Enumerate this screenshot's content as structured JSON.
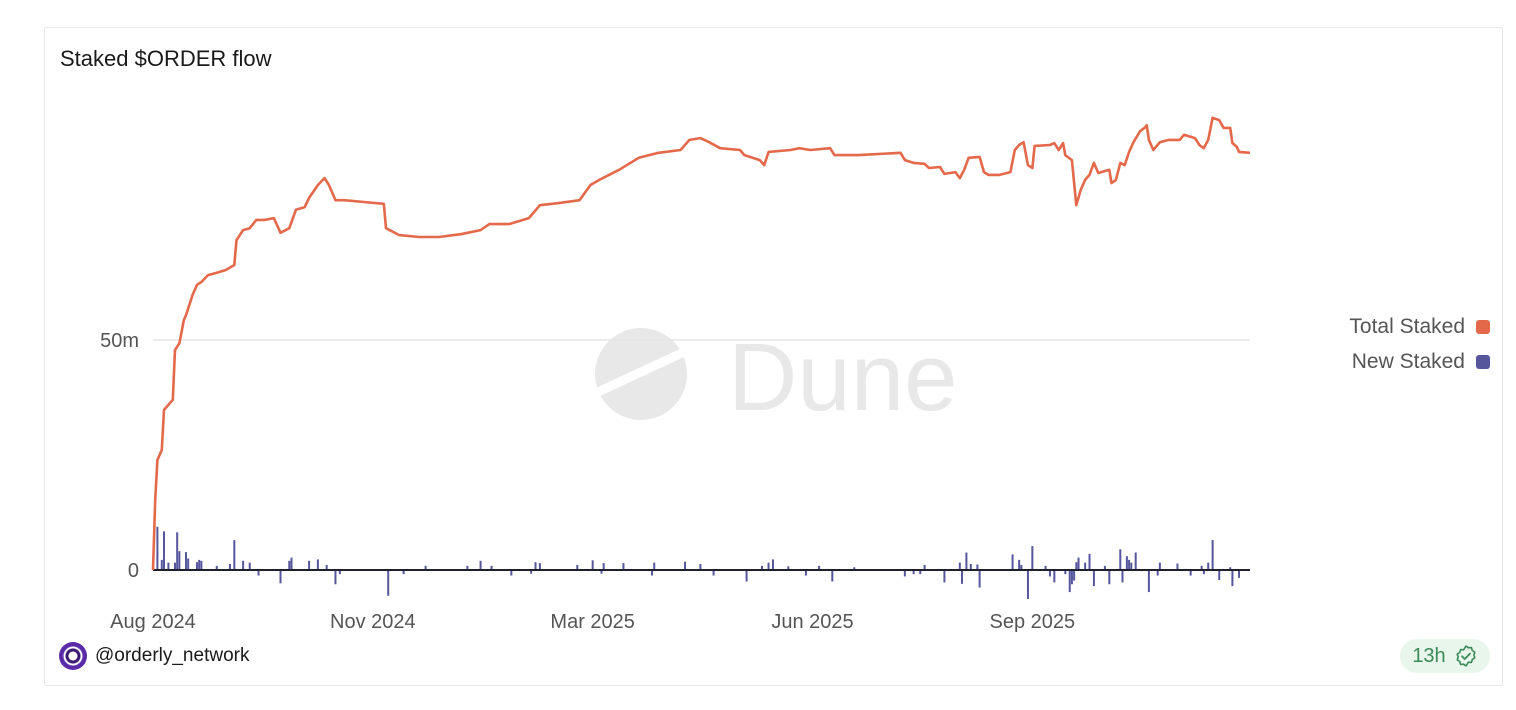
{
  "title": "Staked $ORDER flow",
  "watermark": "Dune",
  "footer": {
    "username": "@orderly_network",
    "freshness": "13h",
    "verified_icon": "badge-check-icon"
  },
  "colors": {
    "total": "#e4694a",
    "new": "#55569c",
    "grid": "#e6e6e6",
    "axis": "#1f1f2e"
  },
  "chart_data": {
    "type": "line+bar",
    "title": "Staked $ORDER flow",
    "x_unit": "days since 2024-08-20",
    "xlim": [
      0,
      499
    ],
    "ylim": [
      -6,
      102
    ],
    "y_unit": "millions",
    "grid": true,
    "legend_position": "right",
    "x_ticks": [
      {
        "x": 0,
        "label": "Aug 2024"
      },
      {
        "x": 100,
        "label": "Nov 2024"
      },
      {
        "x": 200,
        "label": "Mar 2025"
      },
      {
        "x": 300,
        "label": "Jun 2025"
      },
      {
        "x": 400,
        "label": "Sep 2025"
      }
    ],
    "y_ticks": [
      {
        "y": 0,
        "label": "0"
      },
      {
        "y": 50,
        "label": "50m"
      }
    ],
    "series": [
      {
        "name": "Total Staked",
        "type": "line",
        "points": [
          [
            0,
            0
          ],
          [
            1,
            15.2
          ],
          [
            2,
            23.9
          ],
          [
            4,
            26.1
          ],
          [
            5,
            34.8
          ],
          [
            9,
            37.0
          ],
          [
            10,
            47.8
          ],
          [
            12,
            49.3
          ],
          [
            14,
            54.3
          ],
          [
            15,
            55.4
          ],
          [
            18,
            59.8
          ],
          [
            20,
            62.0
          ],
          [
            22,
            62.6
          ],
          [
            25,
            64.1
          ],
          [
            29,
            64.6
          ],
          [
            33,
            65.2
          ],
          [
            37,
            66.3
          ],
          [
            38,
            71.7
          ],
          [
            41,
            73.9
          ],
          [
            44,
            74.3
          ],
          [
            47,
            76.1
          ],
          [
            51,
            76.1
          ],
          [
            55,
            76.5
          ],
          [
            58,
            73.3
          ],
          [
            62,
            74.3
          ],
          [
            65,
            78.3
          ],
          [
            69,
            78.9
          ],
          [
            71,
            80.9
          ],
          [
            75,
            83.7
          ],
          [
            78,
            85.2
          ],
          [
            80,
            83.7
          ],
          [
            83,
            80.4
          ],
          [
            87,
            80.4
          ],
          [
            96,
            80.0
          ],
          [
            105,
            79.6
          ],
          [
            106,
            74.3
          ],
          [
            112,
            72.8
          ],
          [
            121,
            72.4
          ],
          [
            130,
            72.4
          ],
          [
            140,
            73.0
          ],
          [
            149,
            73.9
          ],
          [
            153,
            75.2
          ],
          [
            162,
            75.2
          ],
          [
            171,
            76.5
          ],
          [
            176,
            79.3
          ],
          [
            185,
            79.8
          ],
          [
            194,
            80.4
          ],
          [
            199,
            83.7
          ],
          [
            203,
            84.8
          ],
          [
            212,
            87.0
          ],
          [
            221,
            89.6
          ],
          [
            230,
            90.7
          ],
          [
            240,
            91.3
          ],
          [
            244,
            93.5
          ],
          [
            249,
            93.9
          ],
          [
            253,
            93.0
          ],
          [
            258,
            91.7
          ],
          [
            267,
            91.3
          ],
          [
            269,
            90.2
          ],
          [
            276,
            89.1
          ],
          [
            278,
            88.0
          ],
          [
            280,
            90.9
          ],
          [
            290,
            91.3
          ],
          [
            294,
            91.7
          ],
          [
            299,
            91.3
          ],
          [
            308,
            91.7
          ],
          [
            310,
            90.2
          ],
          [
            321,
            90.2
          ],
          [
            340,
            90.7
          ],
          [
            342,
            89.1
          ],
          [
            346,
            88.5
          ],
          [
            351,
            88.3
          ],
          [
            353,
            87.4
          ],
          [
            358,
            87.6
          ],
          [
            360,
            86.1
          ],
          [
            365,
            86.5
          ],
          [
            367,
            85.2
          ],
          [
            369,
            87.0
          ],
          [
            371,
            89.6
          ],
          [
            376,
            89.8
          ],
          [
            378,
            86.5
          ],
          [
            380,
            85.9
          ],
          [
            385,
            85.9
          ],
          [
            390,
            86.5
          ],
          [
            392,
            91.3
          ],
          [
            394,
            92.4
          ],
          [
            396,
            93.0
          ],
          [
            398,
            88.0
          ],
          [
            400,
            87.4
          ],
          [
            401,
            92.2
          ],
          [
            408,
            92.4
          ],
          [
            410,
            92.8
          ],
          [
            412,
            91.3
          ],
          [
            414,
            92.8
          ],
          [
            415,
            90.2
          ],
          [
            418,
            89.1
          ],
          [
            420,
            79.3
          ],
          [
            422,
            82.6
          ],
          [
            424,
            84.8
          ],
          [
            426,
            85.9
          ],
          [
            428,
            88.5
          ],
          [
            430,
            86.3
          ],
          [
            435,
            87.0
          ],
          [
            436,
            84.1
          ],
          [
            438,
            84.8
          ],
          [
            440,
            88.5
          ],
          [
            442,
            88.0
          ],
          [
            444,
            90.9
          ],
          [
            446,
            93.0
          ],
          [
            449,
            95.4
          ],
          [
            451,
            96.1
          ],
          [
            452,
            96.7
          ],
          [
            453,
            93.5
          ],
          [
            455,
            91.3
          ],
          [
            458,
            93.0
          ],
          [
            462,
            93.5
          ],
          [
            467,
            93.5
          ],
          [
            469,
            94.6
          ],
          [
            474,
            93.9
          ],
          [
            476,
            92.4
          ],
          [
            478,
            91.7
          ],
          [
            480,
            93.5
          ],
          [
            482,
            98.3
          ],
          [
            485,
            97.8
          ],
          [
            487,
            96.1
          ],
          [
            490,
            96.1
          ],
          [
            491,
            92.8
          ],
          [
            493,
            92.0
          ],
          [
            494,
            90.9
          ],
          [
            499,
            90.7
          ]
        ]
      },
      {
        "name": "New Staked",
        "type": "bar",
        "points": [
          [
            2,
            9.4
          ],
          [
            4,
            2.2
          ],
          [
            5,
            8.4
          ],
          [
            7,
            1.6
          ],
          [
            10,
            1.6
          ],
          [
            11,
            8.2
          ],
          [
            12,
            4.1
          ],
          [
            15,
            3.9
          ],
          [
            16,
            2.5
          ],
          [
            20,
            1.7
          ],
          [
            21,
            2.2
          ],
          [
            22,
            2.0
          ],
          [
            29,
            0.9
          ],
          [
            35,
            1.3
          ],
          [
            37,
            6.5
          ],
          [
            41,
            2.0
          ],
          [
            44,
            1.6
          ],
          [
            48,
            -1.2
          ],
          [
            58,
            -2.9
          ],
          [
            62,
            2.0
          ],
          [
            63,
            2.7
          ],
          [
            71,
            2.0
          ],
          [
            75,
            2.3
          ],
          [
            79,
            1.1
          ],
          [
            83,
            -3.1
          ],
          [
            85,
            -0.9
          ],
          [
            107,
            -5.6
          ],
          [
            114,
            -0.9
          ],
          [
            124,
            0.9
          ],
          [
            143,
            0.9
          ],
          [
            149,
            2.0
          ],
          [
            154,
            0.9
          ],
          [
            163,
            -1.2
          ],
          [
            172,
            -0.8
          ],
          [
            174,
            1.7
          ],
          [
            176,
            1.5
          ],
          [
            193,
            1.1
          ],
          [
            200,
            2.1
          ],
          [
            204,
            -0.8
          ],
          [
            205,
            1.5
          ],
          [
            214,
            1.5
          ],
          [
            227,
            -1.2
          ],
          [
            228,
            1.6
          ],
          [
            242,
            1.8
          ],
          [
            249,
            1.3
          ],
          [
            255,
            -1.2
          ],
          [
            270,
            -2.5
          ],
          [
            277,
            0.9
          ],
          [
            280,
            1.6
          ],
          [
            282,
            2.3
          ],
          [
            289,
            0.8
          ],
          [
            297,
            -1.2
          ],
          [
            303,
            0.9
          ],
          [
            309,
            -2.5
          ],
          [
            319,
            0.6
          ],
          [
            342,
            -1.4
          ],
          [
            346,
            -0.9
          ],
          [
            349,
            -0.9
          ],
          [
            351,
            1.1
          ],
          [
            360,
            -2.7
          ],
          [
            367,
            1.6
          ],
          [
            368,
            -3.0
          ],
          [
            370,
            3.8
          ],
          [
            372,
            1.3
          ],
          [
            375,
            1.2
          ],
          [
            376,
            -3.8
          ],
          [
            391,
            3.4
          ],
          [
            394,
            2.2
          ],
          [
            395,
            1.1
          ],
          [
            398,
            -6.3
          ],
          [
            400,
            5.2
          ],
          [
            406,
            0.9
          ],
          [
            408,
            -1.4
          ],
          [
            410,
            -2.7
          ],
          [
            415,
            -0.9
          ],
          [
            417,
            -4.8
          ],
          [
            418,
            -3.1
          ],
          [
            419,
            -2.3
          ],
          [
            420,
            1.7
          ],
          [
            421,
            2.7
          ],
          [
            424,
            1.6
          ],
          [
            426,
            3.5
          ],
          [
            428,
            -3.5
          ],
          [
            433,
            0.9
          ],
          [
            435,
            -3.1
          ],
          [
            440,
            4.5
          ],
          [
            441,
            -2.7
          ],
          [
            443,
            3.0
          ],
          [
            444,
            2.2
          ],
          [
            445,
            1.6
          ],
          [
            447,
            3.8
          ],
          [
            453,
            -4.8
          ],
          [
            457,
            -1.2
          ],
          [
            458,
            1.6
          ],
          [
            466,
            1.4
          ],
          [
            472,
            -1.2
          ],
          [
            477,
            0.9
          ],
          [
            478,
            -0.9
          ],
          [
            480,
            1.6
          ],
          [
            482,
            6.5
          ],
          [
            485,
            -2.2
          ],
          [
            490,
            0.6
          ],
          [
            491,
            -3.5
          ],
          [
            494,
            -1.7
          ]
        ]
      }
    ]
  }
}
